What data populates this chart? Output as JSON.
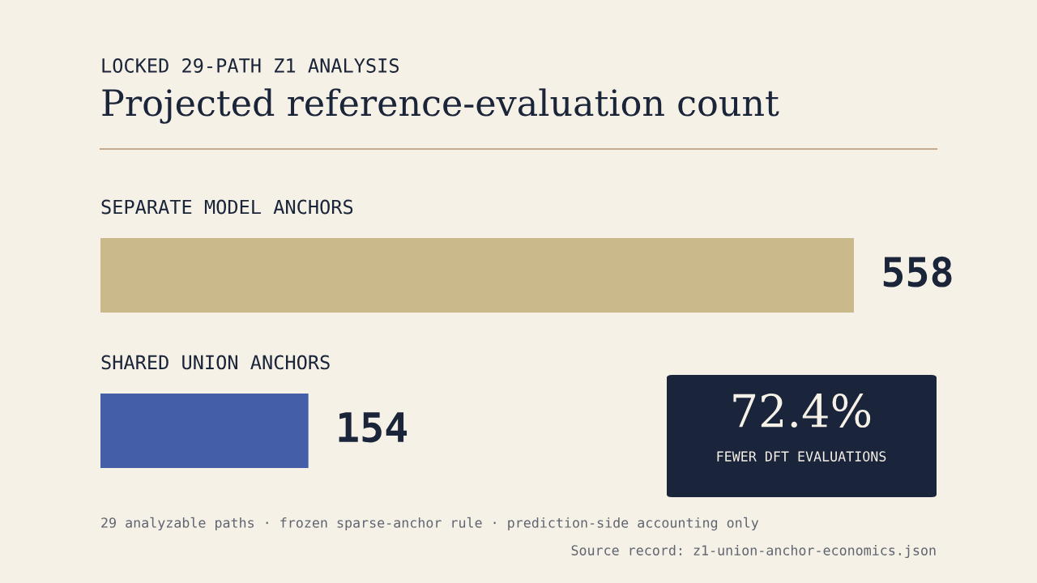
{
  "chart_data": {
    "type": "bar",
    "orientation": "horizontal",
    "subtitle": "LOCKED 29-PATH Z1 ANALYSIS",
    "title": "Projected reference-evaluation count",
    "categories": [
      "SEPARATE MODEL ANCHORS",
      "SHARED UNION ANCHORS"
    ],
    "values": [
      558,
      154
    ],
    "colors": [
      "#c9b98b",
      "#445ea8"
    ],
    "data_labels": true,
    "annotations": [
      "72.4%",
      "FEWER DFT EVALUATIONS",
      "29 analyzable paths · frozen sparse-anchor rule · prediction-side accounting only",
      "Source record: z1-union-anchor-economics.json"
    ]
  }
}
